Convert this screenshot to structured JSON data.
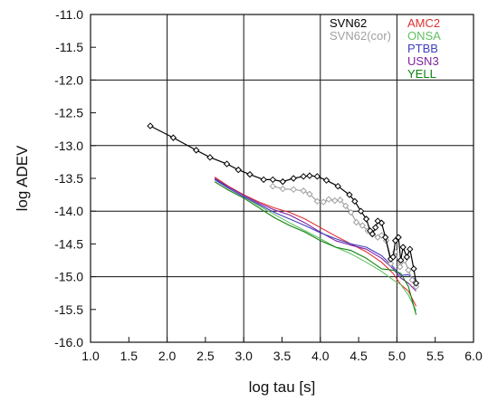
{
  "chart_data": {
    "type": "line",
    "xlabel": "log tau [s]",
    "ylabel": "log ADEV",
    "xlim": [
      1.0,
      6.0
    ],
    "ylim": [
      -16.0,
      -11.0
    ],
    "grid": true,
    "x_ticks": [
      "1.0",
      "1.5",
      "2.0",
      "2.5",
      "3.0",
      "3.5",
      "4.0",
      "4.5",
      "5.0",
      "5.5",
      "6.0"
    ],
    "y_ticks": [
      "-11.0",
      "-11.5",
      "-12.0",
      "-12.5",
      "-13.0",
      "-13.5",
      "-14.0",
      "-14.5",
      "-15.0",
      "-15.5",
      "-16.0"
    ],
    "legend_placement": "top-right",
    "series": [
      {
        "name": "SVN62",
        "color": "#000000",
        "marker": "diamond",
        "x": [
          1.78,
          2.08,
          2.38,
          2.56,
          2.78,
          2.93,
          3.08,
          3.26,
          3.38,
          3.51,
          3.65,
          3.78,
          3.86,
          3.96,
          4.08,
          4.23,
          4.38,
          4.45,
          4.53,
          4.6,
          4.65,
          4.68,
          4.72,
          4.75,
          4.8,
          4.85,
          4.92,
          4.95,
          4.98,
          5.02,
          5.05,
          5.08,
          5.13,
          5.17,
          5.22,
          5.25
        ],
        "y": [
          -12.7,
          -12.88,
          -13.07,
          -13.18,
          -13.28,
          -13.37,
          -13.44,
          -13.52,
          -13.52,
          -13.55,
          -13.5,
          -13.47,
          -13.46,
          -13.47,
          -13.53,
          -13.62,
          -13.75,
          -13.85,
          -14.0,
          -14.12,
          -14.3,
          -14.35,
          -14.25,
          -14.15,
          -14.18,
          -14.4,
          -14.73,
          -14.7,
          -14.45,
          -14.4,
          -14.75,
          -14.55,
          -14.7,
          -14.58,
          -14.88,
          -15.1
        ]
      },
      {
        "name": "SVN62(cor)",
        "color": "#a0a0a0",
        "marker": "diamond",
        "x": [
          3.38,
          3.51,
          3.65,
          3.78,
          3.86,
          3.96,
          4.04,
          4.11,
          4.19,
          4.26,
          4.33,
          4.4,
          4.47,
          4.55,
          4.62,
          4.68,
          4.75,
          4.8,
          4.86,
          4.92,
          4.98,
          5.04,
          5.1,
          5.15,
          5.2,
          5.25
        ],
        "y": [
          -13.62,
          -13.66,
          -13.67,
          -13.69,
          -13.74,
          -13.85,
          -13.86,
          -13.82,
          -13.84,
          -13.83,
          -13.92,
          -14.02,
          -14.17,
          -14.22,
          -14.3,
          -14.35,
          -14.4,
          -14.37,
          -14.45,
          -14.8,
          -14.62,
          -14.85,
          -14.75,
          -14.9,
          -15.05,
          -15.15
        ]
      },
      {
        "name": "AMC2",
        "color": "#e03030",
        "marker": "none",
        "x": [
          2.62,
          2.8,
          3.0,
          3.2,
          3.4,
          3.6,
          3.8,
          4.0,
          4.2,
          4.4,
          4.6,
          4.8,
          4.95,
          5.05,
          5.15,
          5.25
        ],
        "y": [
          -13.48,
          -13.62,
          -13.75,
          -13.86,
          -13.95,
          -14.02,
          -14.12,
          -14.25,
          -14.38,
          -14.5,
          -14.62,
          -14.78,
          -14.95,
          -15.12,
          -15.22,
          -15.45
        ]
      },
      {
        "name": "ONSA",
        "color": "#60c060",
        "marker": "none",
        "x": [
          2.62,
          2.8,
          3.0,
          3.2,
          3.4,
          3.6,
          3.8,
          4.0,
          4.2,
          4.4,
          4.6,
          4.8,
          4.95,
          5.05,
          5.15,
          5.25
        ],
        "y": [
          -13.5,
          -13.65,
          -13.78,
          -13.92,
          -14.05,
          -14.18,
          -14.3,
          -14.42,
          -14.55,
          -14.65,
          -14.78,
          -14.92,
          -15.05,
          -15.12,
          -15.28,
          -15.52
        ]
      },
      {
        "name": "PTBB",
        "color": "#4040c0",
        "marker": "none",
        "x": [
          2.62,
          2.8,
          3.0,
          3.2,
          3.4,
          3.6,
          3.8,
          4.0,
          4.2,
          4.4,
          4.6,
          4.8,
          4.95,
          5.05,
          5.15,
          5.25
        ],
        "y": [
          -13.52,
          -13.65,
          -13.78,
          -13.9,
          -14.02,
          -14.12,
          -14.22,
          -14.33,
          -14.42,
          -14.5,
          -14.55,
          -14.68,
          -14.85,
          -14.98,
          -14.97,
          -15.05
        ]
      },
      {
        "name": "USN3",
        "color": "#8020a0",
        "marker": "none",
        "x": [
          2.62,
          2.8,
          3.0,
          3.2,
          3.4,
          3.6,
          3.8,
          4.0,
          4.2,
          4.4,
          4.6,
          4.8,
          4.95,
          5.05,
          5.15,
          5.25
        ],
        "y": [
          -13.5,
          -13.63,
          -13.76,
          -13.88,
          -13.98,
          -14.06,
          -14.18,
          -14.32,
          -14.45,
          -14.52,
          -14.58,
          -14.72,
          -14.88,
          -15.02,
          -15.1,
          -15.22
        ]
      },
      {
        "name": "YELL",
        "color": "#108010",
        "marker": "none",
        "x": [
          2.62,
          2.8,
          3.0,
          3.2,
          3.4,
          3.6,
          3.8,
          4.0,
          4.2,
          4.4,
          4.6,
          4.8,
          4.95,
          5.05,
          5.15,
          5.25
        ],
        "y": [
          -13.55,
          -13.68,
          -13.8,
          -13.95,
          -14.1,
          -14.22,
          -14.32,
          -14.45,
          -14.55,
          -14.6,
          -14.72,
          -14.88,
          -14.9,
          -14.95,
          -15.15,
          -15.58
        ]
      }
    ]
  }
}
